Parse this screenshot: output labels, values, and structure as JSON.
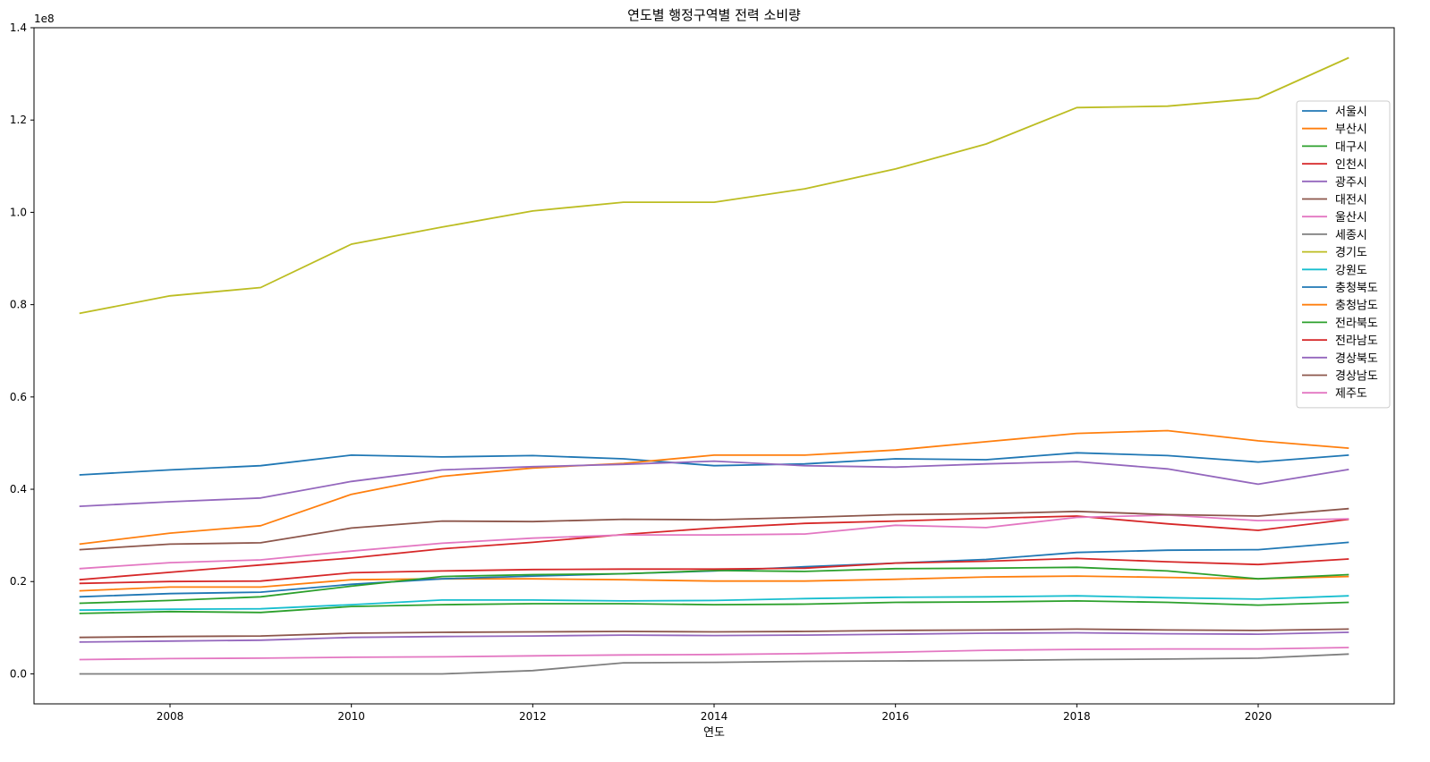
{
  "chart_data": {
    "type": "line",
    "title": "연도별 행정구역별 전력 소비량",
    "xlabel": "연도",
    "ylabel": "",
    "y_offset_text": "1e8",
    "y_scale_multiplier": 100000000,
    "xlim": [
      2006.5,
      2021.5
    ],
    "ylim": [
      -0.065,
      1.4
    ],
    "x_ticks": [
      2008,
      2010,
      2012,
      2014,
      2016,
      2018,
      2020
    ],
    "y_ticks": [
      0.0,
      0.2,
      0.4,
      0.6,
      0.8,
      1.0,
      1.2,
      1.4
    ],
    "y_tick_labels": [
      "0.0",
      "0.2",
      "0.4",
      "0.6",
      "0.8",
      "1.0",
      "1.2",
      "1.4"
    ],
    "legend_position": "upper right",
    "grid": false,
    "x": [
      2007,
      2008,
      2009,
      2010,
      2011,
      2012,
      2013,
      2014,
      2015,
      2016,
      2017,
      2018,
      2019,
      2020,
      2021
    ],
    "series": [
      {
        "name": "서울시",
        "color": "#1f77b4",
        "values": [
          0.431,
          0.442,
          0.451,
          0.474,
          0.47,
          0.473,
          0.466,
          0.451,
          0.455,
          0.466,
          0.464,
          0.479,
          0.473,
          0.459,
          0.474
        ]
      },
      {
        "name": "부산시",
        "color": "#ff7f0e",
        "values": [
          0.18,
          0.188,
          0.188,
          0.204,
          0.206,
          0.206,
          0.204,
          0.201,
          0.201,
          0.205,
          0.21,
          0.212,
          0.209,
          0.206,
          0.211
        ]
      },
      {
        "name": "대구시",
        "color": "#2ca02c",
        "values": [
          0.131,
          0.135,
          0.133,
          0.146,
          0.15,
          0.152,
          0.152,
          0.15,
          0.151,
          0.155,
          0.156,
          0.158,
          0.155,
          0.149,
          0.155
        ]
      },
      {
        "name": "인천시",
        "color": "#d62728",
        "values": [
          0.204,
          0.22,
          0.236,
          0.251,
          0.271,
          0.285,
          0.302,
          0.316,
          0.326,
          0.331,
          0.337,
          0.342,
          0.325,
          0.311,
          0.335
        ]
      },
      {
        "name": "광주시",
        "color": "#9467bd",
        "values": [
          0.069,
          0.071,
          0.073,
          0.079,
          0.081,
          0.082,
          0.084,
          0.083,
          0.084,
          0.086,
          0.088,
          0.089,
          0.087,
          0.086,
          0.09
        ]
      },
      {
        "name": "대전시",
        "color": "#8c564b",
        "values": [
          0.079,
          0.081,
          0.082,
          0.088,
          0.09,
          0.091,
          0.092,
          0.091,
          0.092,
          0.094,
          0.095,
          0.097,
          0.095,
          0.094,
          0.097
        ]
      },
      {
        "name": "울산시",
        "color": "#e377c2",
        "values": [
          0.228,
          0.241,
          0.247,
          0.266,
          0.283,
          0.294,
          0.301,
          0.301,
          0.303,
          0.322,
          0.317,
          0.339,
          0.344,
          0.332,
          0.336
        ]
      },
      {
        "name": "세종시",
        "color": "#7f7f7f",
        "values": [
          0.0,
          0.0,
          0.0,
          0.0,
          0.0,
          0.007,
          0.024,
          0.025,
          0.027,
          0.028,
          0.029,
          0.031,
          0.032,
          0.034,
          0.043
        ]
      },
      {
        "name": "경기도",
        "color": "#bcbd22",
        "values": [
          0.781,
          0.819,
          0.837,
          0.931,
          0.968,
          1.003,
          1.022,
          1.022,
          1.051,
          1.094,
          1.148,
          1.227,
          1.23,
          1.247,
          1.335
        ]
      },
      {
        "name": "강원도",
        "color": "#17becf",
        "values": [
          0.138,
          0.14,
          0.141,
          0.15,
          0.16,
          0.16,
          0.158,
          0.159,
          0.163,
          0.166,
          0.167,
          0.169,
          0.165,
          0.162,
          0.169
        ]
      },
      {
        "name": "충청북도",
        "color": "#1f77b4",
        "values": [
          0.167,
          0.174,
          0.177,
          0.194,
          0.206,
          0.212,
          0.217,
          0.223,
          0.232,
          0.24,
          0.248,
          0.263,
          0.268,
          0.269,
          0.285
        ]
      },
      {
        "name": "충청남도",
        "color": "#ff7f0e",
        "values": [
          0.281,
          0.305,
          0.321,
          0.389,
          0.428,
          0.446,
          0.456,
          0.474,
          0.474,
          0.485,
          0.503,
          0.521,
          0.527,
          0.505,
          0.489
        ]
      },
      {
        "name": "전라북도",
        "color": "#2ca02c",
        "values": [
          0.153,
          0.159,
          0.167,
          0.19,
          0.211,
          0.215,
          0.217,
          0.224,
          0.222,
          0.228,
          0.229,
          0.231,
          0.223,
          0.206,
          0.215
        ]
      },
      {
        "name": "전라남도",
        "color": "#d62728",
        "values": [
          0.196,
          0.2,
          0.201,
          0.219,
          0.223,
          0.226,
          0.227,
          0.227,
          0.229,
          0.24,
          0.244,
          0.25,
          0.243,
          0.237,
          0.249
        ]
      },
      {
        "name": "경상북도",
        "color": "#9467bd",
        "values": [
          0.363,
          0.373,
          0.381,
          0.417,
          0.442,
          0.449,
          0.454,
          0.461,
          0.451,
          0.448,
          0.455,
          0.46,
          0.444,
          0.411,
          0.443
        ]
      },
      {
        "name": "경상남도",
        "color": "#8c564b",
        "values": [
          0.269,
          0.281,
          0.284,
          0.316,
          0.331,
          0.33,
          0.335,
          0.334,
          0.339,
          0.345,
          0.347,
          0.352,
          0.345,
          0.342,
          0.358
        ]
      },
      {
        "name": "제주도",
        "color": "#e377c2",
        "values": [
          0.031,
          0.033,
          0.034,
          0.036,
          0.037,
          0.039,
          0.041,
          0.042,
          0.044,
          0.047,
          0.051,
          0.053,
          0.054,
          0.054,
          0.057
        ]
      }
    ]
  }
}
